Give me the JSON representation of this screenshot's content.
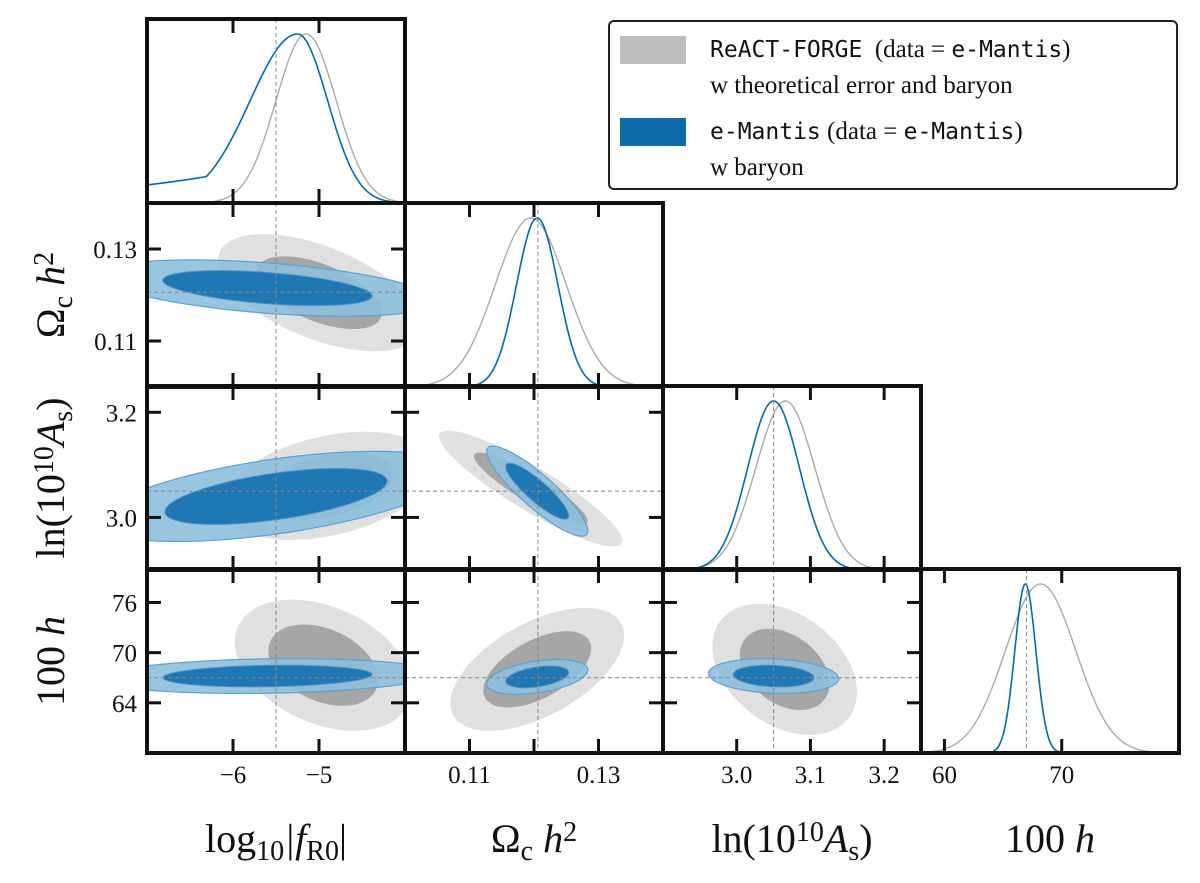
{
  "chart_data": {
    "type": "corner",
    "parameters": [
      {
        "id": "logf",
        "label_main": "log",
        "label_sub": "10",
        "label_rest": "|f",
        "label_rest_sub": "R0",
        "label_close": "|",
        "range": [
          -7.0,
          -4.0
        ],
        "ticks": [
          -6,
          -5
        ],
        "tick_labels": [
          "−6",
          "−5"
        ],
        "fiducial": -5.5
      },
      {
        "id": "omc",
        "label_main": "Ω",
        "label_sub": "c",
        "label_rest": " h",
        "label_sup": "2",
        "range": [
          0.1,
          0.14
        ],
        "ticks": [
          0.11,
          0.12,
          0.13
        ],
        "tick_labels": [
          "0.11",
          "",
          "0.13"
        ],
        "fiducial": 0.1206
      },
      {
        "id": "lnas",
        "label_main": "ln(10",
        "label_sup": "10",
        "label_rest": "A",
        "label_rest_sub": "s",
        "label_close": ")",
        "range": [
          2.9,
          3.25
        ],
        "ticks": [
          3.0,
          3.1,
          3.2
        ],
        "tick_labels": [
          "3.0",
          "3.1",
          "3.2"
        ],
        "fiducial": 3.05
      },
      {
        "id": "h",
        "label_main": "100",
        "label_rest": " h",
        "range": [
          58.0,
          80.0
        ],
        "ticks": [
          60,
          70
        ],
        "tick_labels": [
          "60",
          "70"
        ],
        "fiducial": 67.0
      }
    ],
    "y_axes": [
      {
        "param": "omc",
        "ticks": [
          0.11,
          0.13
        ],
        "tick_labels": [
          "0.11",
          "0.13"
        ],
        "range": [
          0.1,
          0.14
        ]
      },
      {
        "param": "lnas",
        "ticks": [
          3.0,
          3.2
        ],
        "tick_labels": [
          "3.0",
          "3.2"
        ],
        "range": [
          2.9,
          3.25
        ]
      },
      {
        "param": "h",
        "ticks": [
          64,
          70,
          76
        ],
        "tick_labels": [
          "64",
          "70",
          "76"
        ],
        "range": [
          58,
          80
        ]
      }
    ],
    "series": [
      {
        "name": "ReACT-FORGE",
        "color": "#aaaaaa",
        "fill_inner": "#a6a6a6",
        "fill_outer": "#e0e0e0",
        "marginals": {
          "logf": {
            "type": "skewgauss",
            "center": -5.15,
            "sigma_left": 0.35,
            "sigma_right": 0.35,
            "tail": 0.0
          },
          "omc": {
            "type": "gauss",
            "center": 0.1195,
            "sigma": 0.0055
          },
          "lnas": {
            "type": "gauss",
            "center": 3.066,
            "sigma": 0.04
          },
          "h": {
            "type": "gauss",
            "center": 68.2,
            "sigma": 3.0
          }
        },
        "contours_2d": {
          "omc-logf": {
            "center": [
              -5.0,
              0.1205
            ],
            "sigma": [
              0.48,
              0.0052
            ],
            "rho": -0.55
          },
          "lnas-logf": {
            "center": [
              -4.9,
              3.06
            ],
            "sigma": [
              0.5,
              0.042
            ],
            "rho": 0.35
          },
          "lnas-omc": {
            "center": [
              0.1195,
              3.055
            ],
            "sigma": [
              0.0058,
              0.045
            ],
            "rho": -0.9
          },
          "h-logf": {
            "center": [
              -4.95,
              68.5
            ],
            "sigma": [
              0.42,
              3.2
            ],
            "rho": -0.35
          },
          "h-omc": {
            "center": [
              0.1205,
              68.0
            ],
            "sigma": [
              0.0055,
              3.0
            ],
            "rho": 0.55
          },
          "h-lnas": {
            "center": [
              3.065,
              68.0
            ],
            "sigma": [
              0.04,
              3.2
            ],
            "rho": -0.35
          }
        }
      },
      {
        "name": "e-Mantis",
        "color": "#0868a8",
        "fill_inner": "#1f78b4",
        "fill_outer": "#8fbfde",
        "marginals": {
          "logf": {
            "type": "skewgauss",
            "center": -5.25,
            "sigma_left": 0.55,
            "sigma_right": 0.35,
            "tail": 0.28
          },
          "omc": {
            "type": "gauss",
            "center": 0.1205,
            "sigma": 0.0032
          },
          "lnas": {
            "type": "gauss",
            "center": 3.05,
            "sigma": 0.035
          },
          "h": {
            "type": "gauss",
            "center": 66.9,
            "sigma": 0.9
          }
        },
        "contours_2d": {
          "omc-logf": {
            "center": [
              -5.6,
              0.1215
            ],
            "sigma": [
              0.8,
              0.0025
            ],
            "rho": -0.45
          },
          "lnas-logf": {
            "center": [
              -5.5,
              3.04
            ],
            "sigma": [
              0.85,
              0.035
            ],
            "rho": 0.55
          },
          "lnas-omc": {
            "center": [
              0.1205,
              3.05
            ],
            "sigma": [
              0.0032,
              0.035
            ],
            "rho": -0.88
          },
          "h-logf": {
            "center": [
              -5.6,
              67.2
            ],
            "sigma": [
              0.8,
              0.85
            ],
            "rho": 0.15
          },
          "h-omc": {
            "center": [
              0.1205,
              67.1
            ],
            "sigma": [
              0.0032,
              0.85
            ],
            "rho": 0.4
          },
          "h-lnas": {
            "center": [
              3.05,
              67.2
            ],
            "sigma": [
              0.036,
              0.85
            ],
            "rho": -0.15
          }
        }
      }
    ]
  },
  "legend": {
    "entry1_mono": "ReACT-FORGE",
    "entry1_mid": "(data = ",
    "entry1_mono2": "e-Mantis",
    "entry1_end": ")",
    "entry1_line2": "w theoretical error and baryon",
    "entry2_mono": "e-Mantis",
    "entry2_mid": " (data = ",
    "entry2_mono2": "e-Mantis",
    "entry2_end": ")",
    "entry2_line2": "w baryon",
    "color1": "#bdbdbd",
    "color2": "#0b6aa8"
  }
}
